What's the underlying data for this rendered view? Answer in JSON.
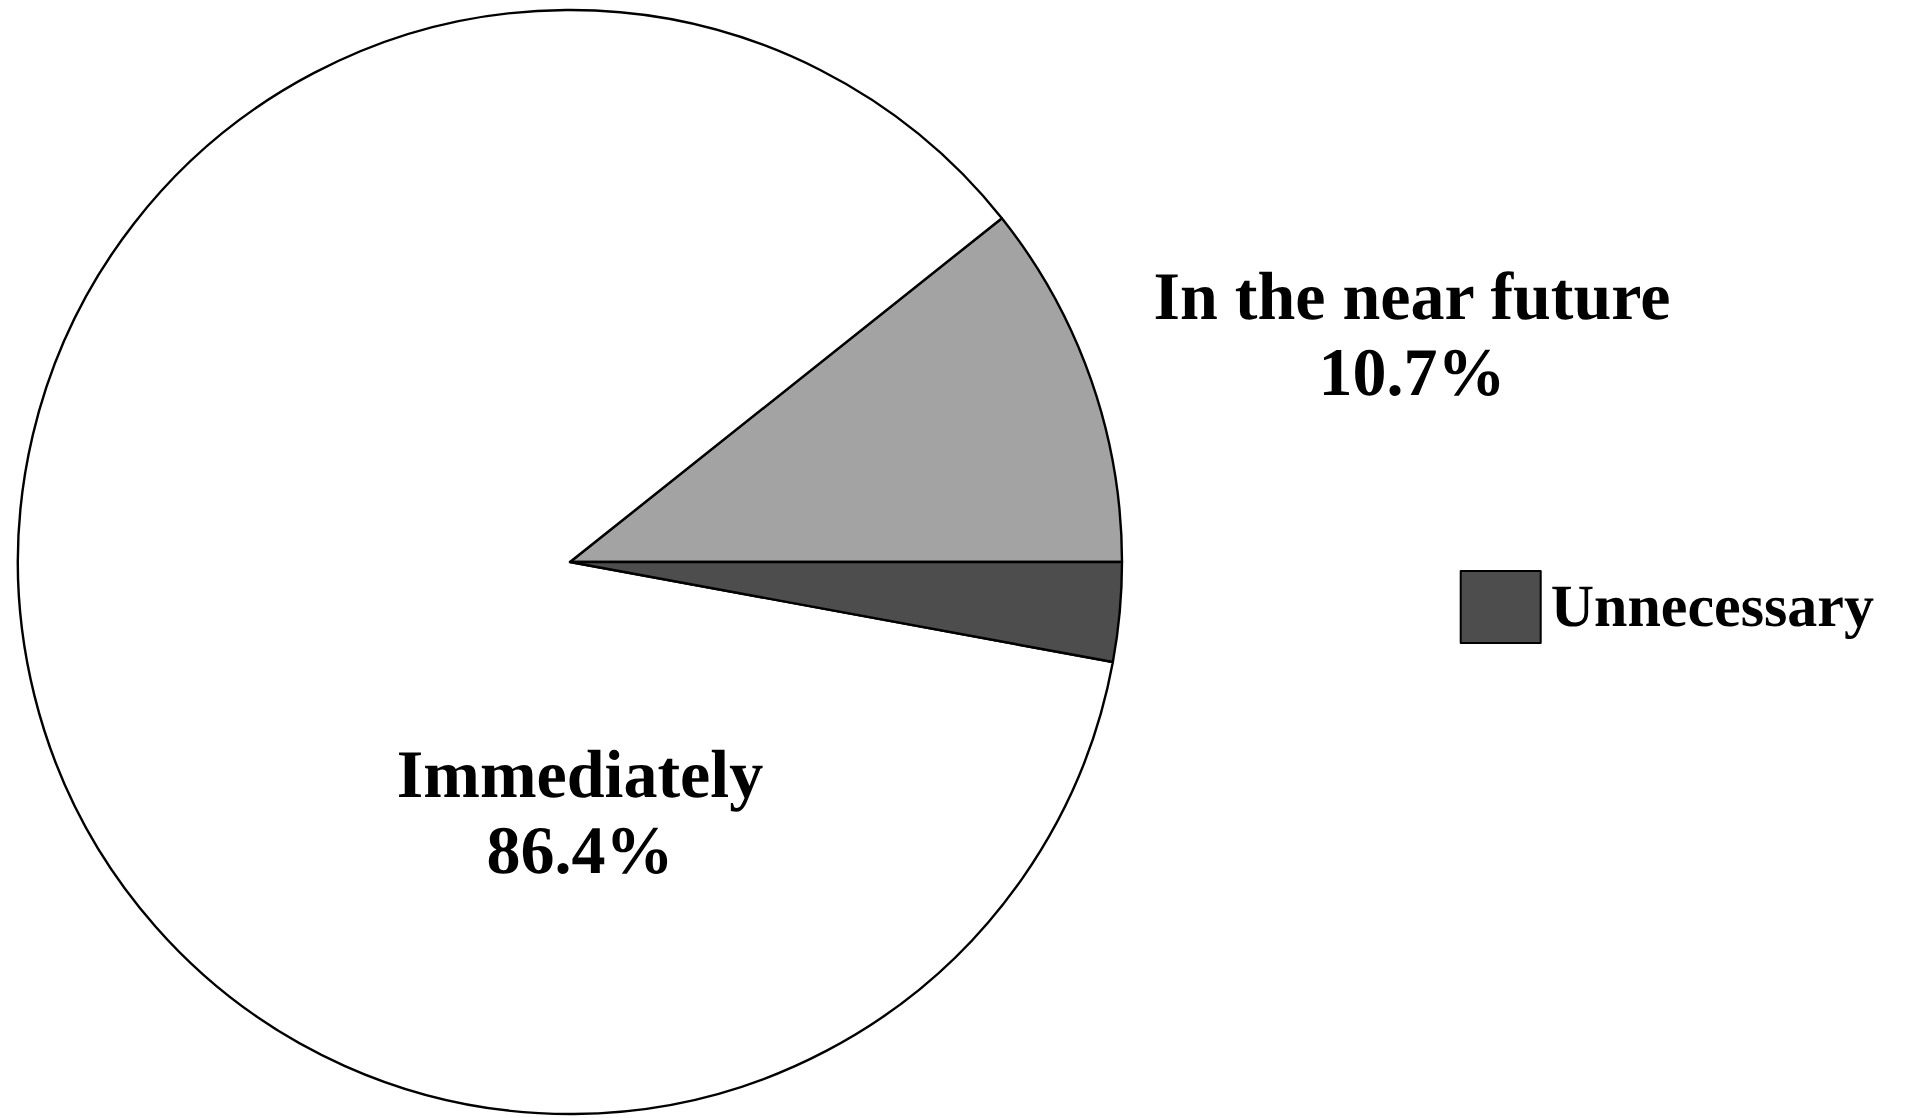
{
  "chart_data": {
    "type": "pie",
    "categories": [
      "In the near future",
      "Immediately",
      "Unnecessary"
    ],
    "values": [
      10.7,
      86.4,
      2.9
    ],
    "colors": [
      "#a3a3a3",
      "#ffffff",
      "#4d4d4d"
    ],
    "value_labels": [
      "10.7%",
      "86.4%",
      null
    ],
    "legend": "right"
  }
}
